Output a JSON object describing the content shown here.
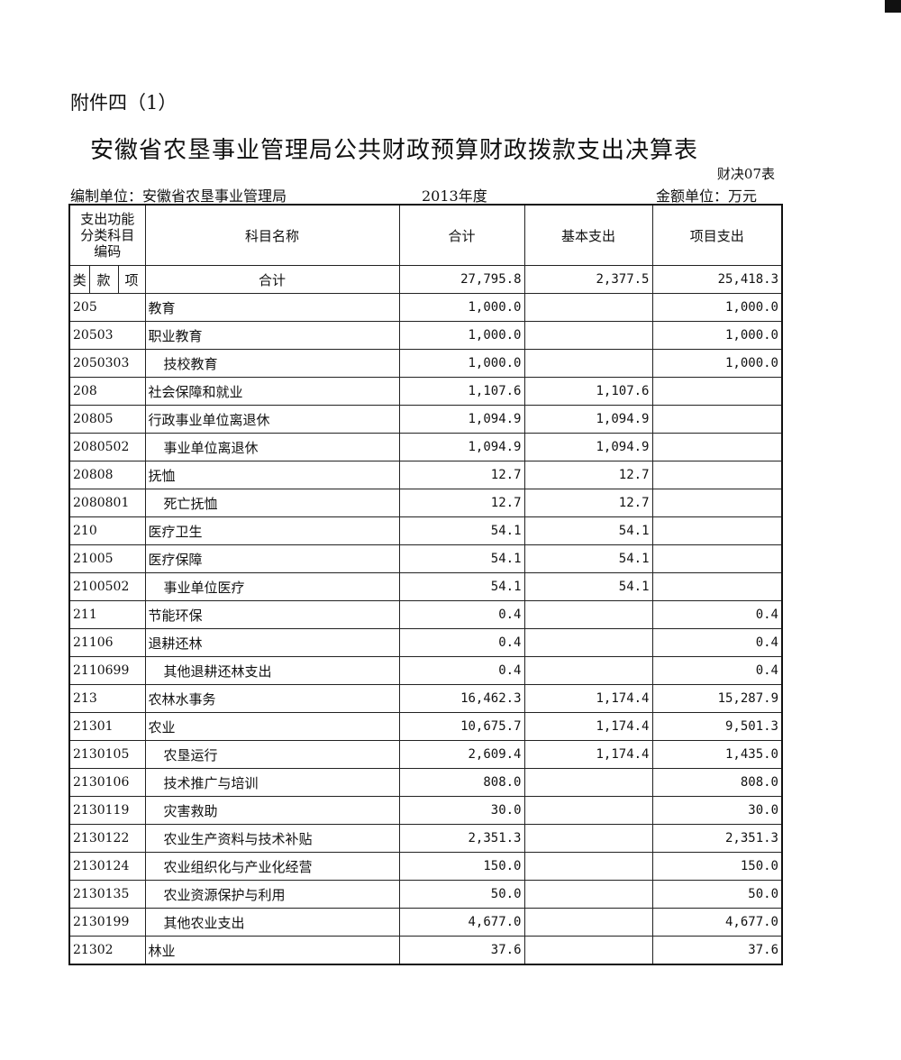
{
  "attachment": "附件四（1）",
  "title": "安徽省农垦事业管理局公共财政预算财政拨款支出决算表",
  "form_no": "财决07表",
  "unit_label": "编制单位：安徽省农垦事业管理局",
  "year": "2013年度",
  "money_unit": "金额单位：万元",
  "headers": {
    "code": "支出功能分类科目编码",
    "name": "科目名称",
    "total": "合计",
    "basic": "基本支出",
    "project": "项目支出",
    "lei": "类",
    "kuan": "款",
    "xiang": "项"
  },
  "total_row": {
    "name": "合计",
    "total": "27,795.8",
    "basic": "2,377.5",
    "project": "25,418.3"
  },
  "rows": [
    {
      "code": "205",
      "name": "教育",
      "total": "1,000.0",
      "basic": "",
      "project": "1,000.0",
      "level": 1
    },
    {
      "code": "20503",
      "name": "职业教育",
      "total": "1,000.0",
      "basic": "",
      "project": "1,000.0",
      "level": 2
    },
    {
      "code": "2050303",
      "name": "技校教育",
      "total": "1,000.0",
      "basic": "",
      "project": "1,000.0",
      "level": 3
    },
    {
      "code": "208",
      "name": "社会保障和就业",
      "total": "1,107.6",
      "basic": "1,107.6",
      "project": "",
      "level": 1
    },
    {
      "code": "20805",
      "name": "行政事业单位离退休",
      "total": "1,094.9",
      "basic": "1,094.9",
      "project": "",
      "level": 2
    },
    {
      "code": "2080502",
      "name": "事业单位离退休",
      "total": "1,094.9",
      "basic": "1,094.9",
      "project": "",
      "level": 3
    },
    {
      "code": "20808",
      "name": "抚恤",
      "total": "12.7",
      "basic": "12.7",
      "project": "",
      "level": 2
    },
    {
      "code": "2080801",
      "name": "死亡抚恤",
      "total": "12.7",
      "basic": "12.7",
      "project": "",
      "level": 3
    },
    {
      "code": "210",
      "name": "医疗卫生",
      "total": "54.1",
      "basic": "54.1",
      "project": "",
      "level": 1
    },
    {
      "code": "21005",
      "name": "医疗保障",
      "total": "54.1",
      "basic": "54.1",
      "project": "",
      "level": 2
    },
    {
      "code": "2100502",
      "name": "事业单位医疗",
      "total": "54.1",
      "basic": "54.1",
      "project": "",
      "level": 3
    },
    {
      "code": "211",
      "name": "节能环保",
      "total": "0.4",
      "basic": "",
      "project": "0.4",
      "level": 1
    },
    {
      "code": "21106",
      "name": "退耕还林",
      "total": "0.4",
      "basic": "",
      "project": "0.4",
      "level": 2
    },
    {
      "code": "2110699",
      "name": "其他退耕还林支出",
      "total": "0.4",
      "basic": "",
      "project": "0.4",
      "level": 3
    },
    {
      "code": "213",
      "name": "农林水事务",
      "total": "16,462.3",
      "basic": "1,174.4",
      "project": "15,287.9",
      "level": 1
    },
    {
      "code": "21301",
      "name": "农业",
      "total": "10,675.7",
      "basic": "1,174.4",
      "project": "9,501.3",
      "level": 2
    },
    {
      "code": "2130105",
      "name": "农垦运行",
      "total": "2,609.4",
      "basic": "1,174.4",
      "project": "1,435.0",
      "level": 3
    },
    {
      "code": "2130106",
      "name": "技术推广与培训",
      "total": "808.0",
      "basic": "",
      "project": "808.0",
      "level": 3
    },
    {
      "code": "2130119",
      "name": "灾害救助",
      "total": "30.0",
      "basic": "",
      "project": "30.0",
      "level": 3
    },
    {
      "code": "2130122",
      "name": "农业生产资料与技术补贴",
      "total": "2,351.3",
      "basic": "",
      "project": "2,351.3",
      "level": 3
    },
    {
      "code": "2130124",
      "name": "农业组织化与产业化经营",
      "total": "150.0",
      "basic": "",
      "project": "150.0",
      "level": 3
    },
    {
      "code": "2130135",
      "name": "农业资源保护与利用",
      "total": "50.0",
      "basic": "",
      "project": "50.0",
      "level": 3
    },
    {
      "code": "2130199",
      "name": "其他农业支出",
      "total": "4,677.0",
      "basic": "",
      "project": "4,677.0",
      "level": 3
    },
    {
      "code": "21302",
      "name": "林业",
      "total": "37.6",
      "basic": "",
      "project": "37.6",
      "level": 2
    }
  ]
}
